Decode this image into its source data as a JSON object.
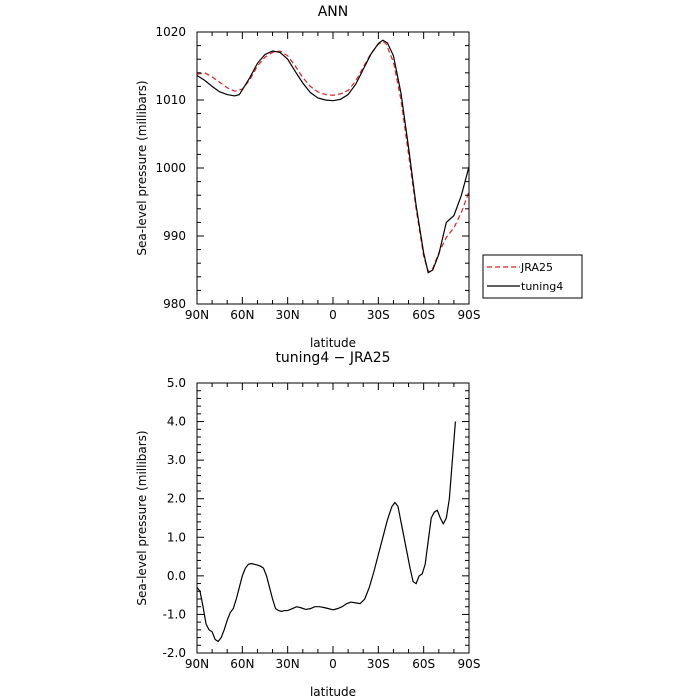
{
  "chart_data": [
    {
      "type": "line",
      "title": "ANN",
      "xlabel": "latitude",
      "ylabel": "Sea-level pressure (millibars)",
      "xlim": [
        90,
        -90
      ],
      "ylim": [
        980,
        1020
      ],
      "x_ticks": [
        {
          "value": 90,
          "label": "90N"
        },
        {
          "value": 60,
          "label": "60N"
        },
        {
          "value": 30,
          "label": "30N"
        },
        {
          "value": 0,
          "label": "0"
        },
        {
          "value": -30,
          "label": "30S"
        },
        {
          "value": -60,
          "label": "60S"
        },
        {
          "value": -90,
          "label": "90S"
        }
      ],
      "y_ticks": [
        {
          "value": 1020,
          "label": "1020"
        },
        {
          "value": 1010,
          "label": "1010"
        },
        {
          "value": 1000,
          "label": "1000"
        },
        {
          "value": 990,
          "label": "990"
        },
        {
          "value": 980,
          "label": "980"
        }
      ],
      "legend_position": "right",
      "series": [
        {
          "name": "JRA25",
          "color": "#e02020",
          "dash": "dashed",
          "points": [
            [
              90,
              1013.8
            ],
            [
              85,
              1014.0
            ],
            [
              80,
              1013.4
            ],
            [
              75,
              1012.6
            ],
            [
              70,
              1011.8
            ],
            [
              65,
              1011.3
            ],
            [
              60,
              1011.6
            ],
            [
              55,
              1013.0
            ],
            [
              50,
              1015.0
            ],
            [
              45,
              1016.3
            ],
            [
              40,
              1017.0
            ],
            [
              35,
              1017.2
            ],
            [
              30,
              1016.5
            ],
            [
              25,
              1015.0
            ],
            [
              20,
              1013.3
            ],
            [
              15,
              1012.0
            ],
            [
              10,
              1011.2
            ],
            [
              5,
              1010.8
            ],
            [
              0,
              1010.7
            ],
            [
              -5,
              1010.9
            ],
            [
              -10,
              1011.4
            ],
            [
              -15,
              1012.8
            ],
            [
              -20,
              1014.8
            ],
            [
              -25,
              1016.8
            ],
            [
              -30,
              1018.2
            ],
            [
              -33,
              1018.6
            ],
            [
              -35,
              1018.3
            ],
            [
              -40,
              1015.6
            ],
            [
              -45,
              1010.0
            ],
            [
              -50,
              1002.0
            ],
            [
              -55,
              994.0
            ],
            [
              -60,
              987.0
            ],
            [
              -63,
              984.8
            ],
            [
              -66,
              985.2
            ],
            [
              -70,
              987.5
            ],
            [
              -75,
              989.8
            ],
            [
              -80,
              991.2
            ],
            [
              -85,
              993.5
            ],
            [
              -90,
              996.5
            ]
          ]
        },
        {
          "name": "tuning4",
          "color": "#000000",
          "dash": "solid",
          "points": [
            [
              90,
              1013.6
            ],
            [
              85,
              1012.9
            ],
            [
              80,
              1012.0
            ],
            [
              75,
              1011.2
            ],
            [
              70,
              1010.8
            ],
            [
              65,
              1010.6
            ],
            [
              62,
              1010.8
            ],
            [
              60,
              1011.5
            ],
            [
              55,
              1013.3
            ],
            [
              50,
              1015.4
            ],
            [
              45,
              1016.7
            ],
            [
              40,
              1017.2
            ],
            [
              35,
              1017.0
            ],
            [
              30,
              1016.0
            ],
            [
              25,
              1014.2
            ],
            [
              20,
              1012.5
            ],
            [
              15,
              1011.1
            ],
            [
              10,
              1010.3
            ],
            [
              5,
              1010.0
            ],
            [
              0,
              1009.9
            ],
            [
              -5,
              1010.1
            ],
            [
              -10,
              1010.8
            ],
            [
              -15,
              1012.3
            ],
            [
              -20,
              1014.5
            ],
            [
              -25,
              1016.7
            ],
            [
              -30,
              1018.3
            ],
            [
              -33,
              1018.8
            ],
            [
              -36,
              1018.4
            ],
            [
              -40,
              1016.5
            ],
            [
              -45,
              1011.0
            ],
            [
              -50,
              1003.0
            ],
            [
              -55,
              994.5
            ],
            [
              -60,
              987.5
            ],
            [
              -63,
              984.6
            ],
            [
              -66,
              985.0
            ],
            [
              -70,
              987.3
            ],
            [
              -75,
              992.0
            ],
            [
              -80,
              993.0
            ],
            [
              -85,
              996.0
            ],
            [
              -90,
              1000.2
            ]
          ]
        }
      ]
    },
    {
      "type": "line",
      "title": "tuning4 − JRA25",
      "xlabel": "latitude",
      "ylabel": "Sea-level pressure (millibars)",
      "xlim": [
        90,
        -90
      ],
      "ylim": [
        -2.0,
        5.0
      ],
      "x_ticks": [
        {
          "value": 90,
          "label": "90N"
        },
        {
          "value": 60,
          "label": "60N"
        },
        {
          "value": 30,
          "label": "30N"
        },
        {
          "value": 0,
          "label": "0"
        },
        {
          "value": -30,
          "label": "30S"
        },
        {
          "value": -60,
          "label": "60S"
        },
        {
          "value": -90,
          "label": "90S"
        }
      ],
      "y_ticks": [
        {
          "value": 5.0,
          "label": "5.0"
        },
        {
          "value": 4.0,
          "label": "4.0"
        },
        {
          "value": 3.0,
          "label": "3.0"
        },
        {
          "value": 2.0,
          "label": "2.0"
        },
        {
          "value": 1.0,
          "label": "1.0"
        },
        {
          "value": 0.0,
          "label": "0.0"
        },
        {
          "value": -1.0,
          "label": "-1.0"
        },
        {
          "value": -2.0,
          "label": "-2.0"
        }
      ],
      "series": [
        {
          "color": "#000000",
          "dash": "solid",
          "points": [
            [
              90,
              -0.3
            ],
            [
              88,
              -0.4
            ],
            [
              86,
              -0.8
            ],
            [
              84,
              -1.25
            ],
            [
              82,
              -1.4
            ],
            [
              80,
              -1.45
            ],
            [
              78,
              -1.65
            ],
            [
              76,
              -1.7
            ],
            [
              74,
              -1.6
            ],
            [
              72,
              -1.4
            ],
            [
              70,
              -1.15
            ],
            [
              68,
              -0.95
            ],
            [
              66,
              -0.85
            ],
            [
              64,
              -0.6
            ],
            [
              62,
              -0.3
            ],
            [
              60,
              0.0
            ],
            [
              58,
              0.2
            ],
            [
              56,
              0.3
            ],
            [
              54,
              0.32
            ],
            [
              52,
              0.3
            ],
            [
              50,
              0.28
            ],
            [
              48,
              0.25
            ],
            [
              46,
              0.2
            ],
            [
              44,
              0.0
            ],
            [
              42,
              -0.3
            ],
            [
              40,
              -0.6
            ],
            [
              38,
              -0.85
            ],
            [
              36,
              -0.9
            ],
            [
              34,
              -0.92
            ],
            [
              32,
              -0.9
            ],
            [
              30,
              -0.9
            ],
            [
              27,
              -0.85
            ],
            [
              24,
              -0.8
            ],
            [
              21,
              -0.83
            ],
            [
              18,
              -0.87
            ],
            [
              15,
              -0.85
            ],
            [
              12,
              -0.8
            ],
            [
              9,
              -0.8
            ],
            [
              6,
              -0.82
            ],
            [
              3,
              -0.85
            ],
            [
              0,
              -0.88
            ],
            [
              -3,
              -0.85
            ],
            [
              -6,
              -0.8
            ],
            [
              -9,
              -0.72
            ],
            [
              -12,
              -0.68
            ],
            [
              -15,
              -0.7
            ],
            [
              -18,
              -0.72
            ],
            [
              -21,
              -0.6
            ],
            [
              -24,
              -0.3
            ],
            [
              -27,
              0.1
            ],
            [
              -30,
              0.55
            ],
            [
              -33,
              1.0
            ],
            [
              -36,
              1.45
            ],
            [
              -39,
              1.8
            ],
            [
              -41,
              1.9
            ],
            [
              -43,
              1.8
            ],
            [
              -45,
              1.4
            ],
            [
              -48,
              0.8
            ],
            [
              -51,
              0.2
            ],
            [
              -53,
              -0.15
            ],
            [
              -55,
              -0.2
            ],
            [
              -57,
              0.0
            ],
            [
              -59,
              0.05
            ],
            [
              -61,
              0.3
            ],
            [
              -63,
              0.9
            ],
            [
              -65,
              1.5
            ],
            [
              -67,
              1.65
            ],
            [
              -69,
              1.7
            ],
            [
              -71,
              1.5
            ],
            [
              -73,
              1.35
            ],
            [
              -75,
              1.5
            ],
            [
              -77,
              2.0
            ],
            [
              -79,
              3.0
            ],
            [
              -81,
              4.0
            ]
          ]
        }
      ]
    }
  ]
}
